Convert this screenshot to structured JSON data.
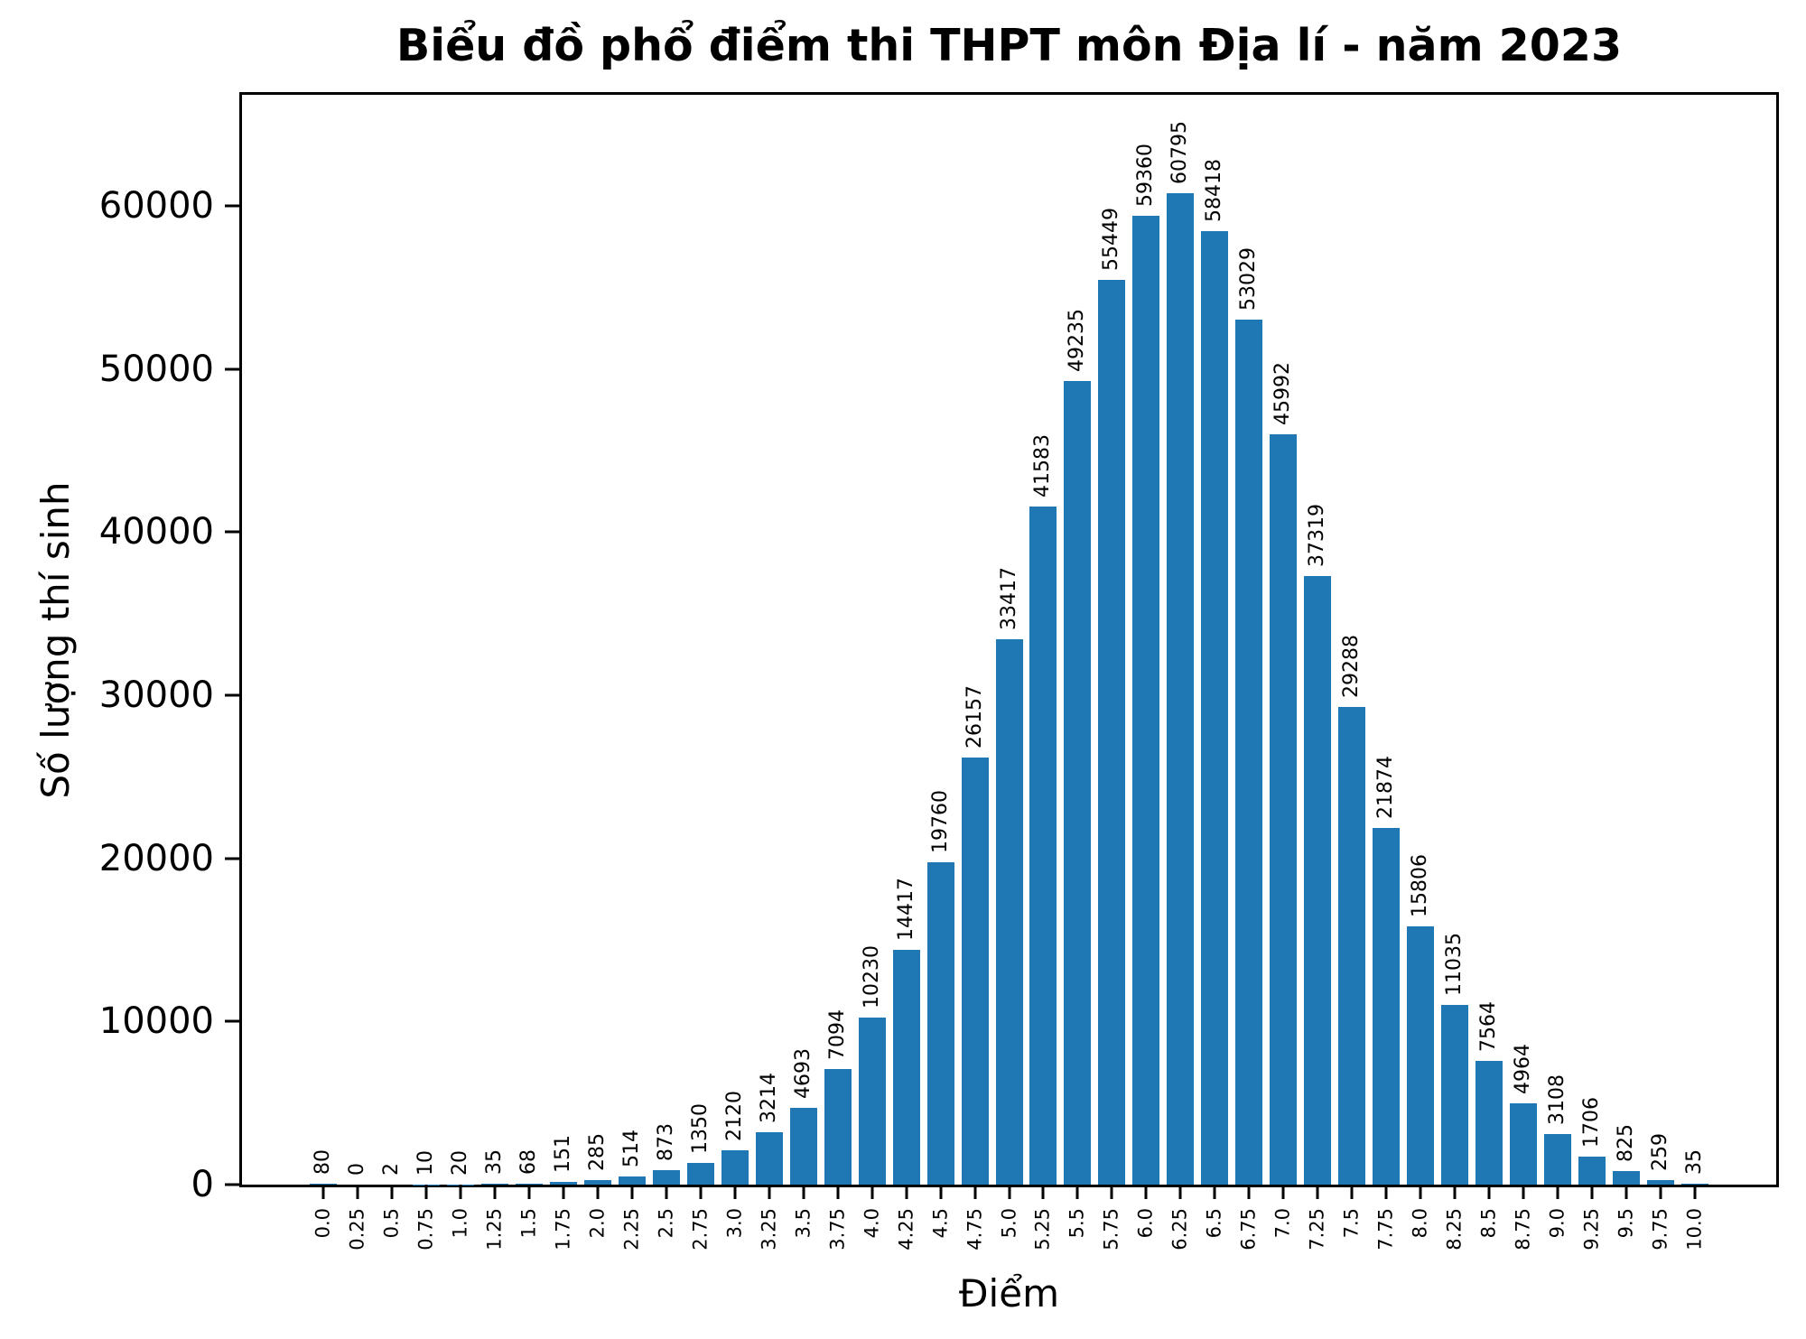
{
  "chart_data": {
    "type": "bar",
    "title": "Biểu đồ phổ điểm thi THPT môn Địa lí - năm 2023",
    "xlabel": "Điểm",
    "ylabel": "Số lượng thí sinh",
    "categories": [
      "0.0",
      "0.25",
      "0.5",
      "0.75",
      "1.0",
      "1.25",
      "1.5",
      "1.75",
      "2.0",
      "2.25",
      "2.5",
      "2.75",
      "3.0",
      "3.25",
      "3.5",
      "3.75",
      "4.0",
      "4.25",
      "4.5",
      "4.75",
      "5.0",
      "5.25",
      "5.5",
      "5.75",
      "6.0",
      "6.25",
      "6.5",
      "6.75",
      "7.0",
      "7.25",
      "7.5",
      "7.75",
      "8.0",
      "8.25",
      "8.5",
      "8.75",
      "9.0",
      "9.25",
      "9.5",
      "9.75",
      "10.0"
    ],
    "values": [
      80,
      0,
      2,
      10,
      20,
      35,
      68,
      151,
      285,
      514,
      873,
      1350,
      2120,
      3214,
      4693,
      7094,
      10230,
      14417,
      19760,
      26157,
      33417,
      41583,
      49235,
      55449,
      59360,
      60795,
      58418,
      53029,
      45992,
      37319,
      29288,
      21874,
      15806,
      11035,
      7564,
      4964,
      3108,
      1706,
      825,
      259,
      35
    ],
    "yticks": [
      0,
      10000,
      20000,
      30000,
      40000,
      50000,
      60000
    ],
    "ylim": [
      0,
      66800
    ],
    "bar_color": "#1f77b4",
    "grid": false,
    "legend_position": "none",
    "value_labels_rotation": 90,
    "xtick_rotation": 90
  }
}
